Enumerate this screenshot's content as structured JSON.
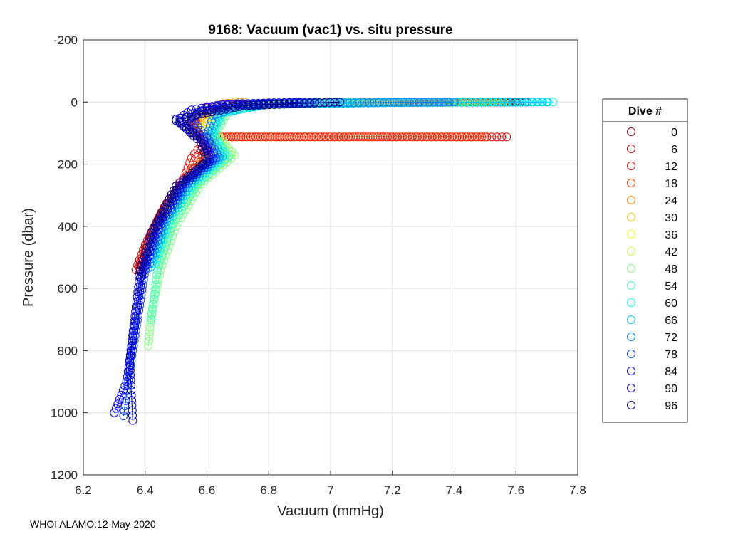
{
  "chart_data": {
    "type": "scatter",
    "title": "9168: Vacuum (vac1) vs. situ pressure",
    "xlabel": "Vacuum (mmHg)",
    "ylabel": "Pressure (dbar)",
    "xlim": [
      6.2,
      7.8
    ],
    "ylim": [
      -200,
      1200
    ],
    "y_reversed": true,
    "grid": true,
    "xticks": [
      "6.2",
      "6.4",
      "6.6",
      "6.8",
      "7",
      "7.2",
      "7.4",
      "7.6",
      "7.8"
    ],
    "yticks": [
      "-200",
      "0",
      "200",
      "400",
      "600",
      "800",
      "1000",
      "1200"
    ],
    "legend_title": "Dive #",
    "legend_position": "right-outside",
    "series": [
      {
        "name": "0",
        "color": "#7f0000",
        "profile": [
          [
            7.63,
            0
          ],
          [
            6.8,
            2
          ],
          [
            6.6,
            15
          ],
          [
            6.55,
            60
          ],
          [
            6.6,
            150
          ],
          [
            6.55,
            250
          ],
          [
            6.47,
            330
          ],
          [
            6.41,
            450
          ],
          [
            6.38,
            540
          ]
        ]
      },
      {
        "name": "6",
        "color": "#c80000",
        "profile": [
          [
            7.6,
            0
          ],
          [
            6.85,
            3
          ],
          [
            6.62,
            18
          ],
          [
            6.55,
            70
          ],
          [
            6.62,
            155
          ],
          [
            6.54,
            255
          ],
          [
            6.46,
            340
          ],
          [
            6.4,
            460
          ],
          [
            6.37,
            540
          ]
        ]
      },
      {
        "name": "12",
        "color": "#ff0000",
        "profile": [
          [
            7.57,
            112
          ],
          [
            7.2,
            112
          ],
          [
            6.9,
            112
          ],
          [
            6.6,
            112
          ],
          [
            6.55,
            180
          ],
          [
            6.52,
            260
          ],
          [
            6.45,
            360
          ],
          [
            6.4,
            470
          ],
          [
            6.38,
            530
          ]
        ]
      },
      {
        "name": "18",
        "color": "#ff4000",
        "profile": [
          [
            7.5,
            112
          ],
          [
            7.0,
            112
          ],
          [
            6.7,
            112
          ],
          [
            6.62,
            112
          ],
          [
            6.58,
            190
          ],
          [
            6.5,
            270
          ],
          [
            6.44,
            380
          ],
          [
            6.4,
            480
          ]
        ]
      },
      {
        "name": "24",
        "color": "#ff7f00",
        "profile": [
          [
            6.72,
            0
          ],
          [
            6.65,
            5
          ],
          [
            6.6,
            20
          ],
          [
            6.55,
            90
          ],
          [
            6.62,
            160
          ],
          [
            6.53,
            255
          ],
          [
            6.46,
            350
          ],
          [
            6.41,
            470
          ]
        ]
      },
      {
        "name": "30",
        "color": "#ffbf00",
        "profile": [
          [
            7.57,
            0
          ],
          [
            7.0,
            2
          ],
          [
            6.7,
            10
          ],
          [
            6.58,
            60
          ],
          [
            6.63,
            160
          ],
          [
            6.55,
            255
          ],
          [
            6.47,
            350
          ],
          [
            6.42,
            480
          ]
        ]
      },
      {
        "name": "36",
        "color": "#ffff00",
        "profile": [
          [
            7.56,
            0
          ],
          [
            7.0,
            3
          ],
          [
            6.7,
            12
          ],
          [
            6.6,
            70
          ],
          [
            6.64,
            165
          ],
          [
            6.56,
            258
          ],
          [
            6.48,
            360
          ],
          [
            6.43,
            500
          ]
        ]
      },
      {
        "name": "42",
        "color": "#bfff40",
        "profile": [
          [
            7.1,
            0
          ],
          [
            6.8,
            5
          ],
          [
            6.66,
            25
          ],
          [
            6.62,
            90
          ],
          [
            6.68,
            170
          ],
          [
            6.57,
            262
          ],
          [
            6.49,
            380
          ],
          [
            6.44,
            520
          ]
        ]
      },
      {
        "name": "48",
        "color": "#80ff80",
        "profile": [
          [
            7.08,
            0
          ],
          [
            6.8,
            6
          ],
          [
            6.67,
            30
          ],
          [
            6.63,
            100
          ],
          [
            6.69,
            172
          ],
          [
            6.58,
            265
          ],
          [
            6.5,
            400
          ],
          [
            6.45,
            540
          ],
          [
            6.42,
            680
          ],
          [
            6.41,
            785
          ]
        ]
      },
      {
        "name": "54",
        "color": "#40ffbf",
        "profile": [
          [
            7.05,
            0
          ],
          [
            6.78,
            8
          ],
          [
            6.66,
            35
          ],
          [
            6.62,
            105
          ],
          [
            6.67,
            175
          ],
          [
            6.57,
            265
          ],
          [
            6.49,
            390
          ],
          [
            6.44,
            540
          ],
          [
            6.42,
            700
          ]
        ]
      },
      {
        "name": "60",
        "color": "#00ffff",
        "profile": [
          [
            7.72,
            0
          ],
          [
            7.2,
            1
          ],
          [
            6.8,
            6
          ],
          [
            6.65,
            30
          ],
          [
            6.62,
            100
          ],
          [
            6.66,
            172
          ],
          [
            6.56,
            262
          ],
          [
            6.48,
            380
          ],
          [
            6.43,
            520
          ]
        ]
      },
      {
        "name": "66",
        "color": "#00bfff",
        "profile": [
          [
            7.7,
            0
          ],
          [
            7.2,
            2
          ],
          [
            6.8,
            8
          ],
          [
            6.64,
            35
          ],
          [
            6.61,
            105
          ],
          [
            6.65,
            175
          ],
          [
            6.55,
            262
          ],
          [
            6.47,
            385
          ],
          [
            6.42,
            530
          ]
        ]
      },
      {
        "name": "72",
        "color": "#0080ff",
        "profile": [
          [
            7.4,
            0
          ],
          [
            6.9,
            3
          ],
          [
            6.7,
            12
          ],
          [
            6.62,
            45
          ],
          [
            6.6,
            110
          ],
          [
            6.64,
            178
          ],
          [
            6.54,
            262
          ],
          [
            6.46,
            390
          ],
          [
            6.41,
            535
          ]
        ]
      },
      {
        "name": "78",
        "color": "#0040ff",
        "profile": [
          [
            6.95,
            0
          ],
          [
            6.7,
            5
          ],
          [
            6.6,
            18
          ],
          [
            6.55,
            55
          ],
          [
            6.6,
            115
          ],
          [
            6.63,
            180
          ],
          [
            6.53,
            264
          ],
          [
            6.45,
            395
          ],
          [
            6.4,
            540
          ],
          [
            6.36,
            800
          ],
          [
            6.33,
            1010
          ]
        ]
      },
      {
        "name": "84",
        "color": "#0000ff",
        "profile": [
          [
            6.9,
            0
          ],
          [
            6.65,
            8
          ],
          [
            6.55,
            25
          ],
          [
            6.5,
            60
          ],
          [
            6.58,
            120
          ],
          [
            6.62,
            182
          ],
          [
            6.52,
            266
          ],
          [
            6.44,
            400
          ],
          [
            6.39,
            560
          ],
          [
            6.34,
            900
          ],
          [
            6.3,
            1000
          ]
        ]
      },
      {
        "name": "90",
        "color": "#0000bf",
        "profile": [
          [
            7.03,
            0
          ],
          [
            6.7,
            10
          ],
          [
            6.58,
            30
          ],
          [
            6.52,
            70
          ],
          [
            6.59,
            125
          ],
          [
            6.61,
            185
          ],
          [
            6.51,
            268
          ],
          [
            6.43,
            410
          ],
          [
            6.38,
            580
          ],
          [
            6.35,
            830
          ],
          [
            6.36,
            1025
          ]
        ]
      },
      {
        "name": "96",
        "color": "#000080",
        "profile": [
          [
            7.03,
            0
          ],
          [
            6.72,
            12
          ],
          [
            6.6,
            35
          ],
          [
            6.5,
            55
          ],
          [
            6.58,
            130
          ],
          [
            6.6,
            190
          ],
          [
            6.5,
            270
          ],
          [
            6.42,
            420
          ],
          [
            6.38,
            560
          ]
        ]
      }
    ]
  },
  "footer": {
    "text": "WHOI ALAMO:12-May-2020"
  }
}
